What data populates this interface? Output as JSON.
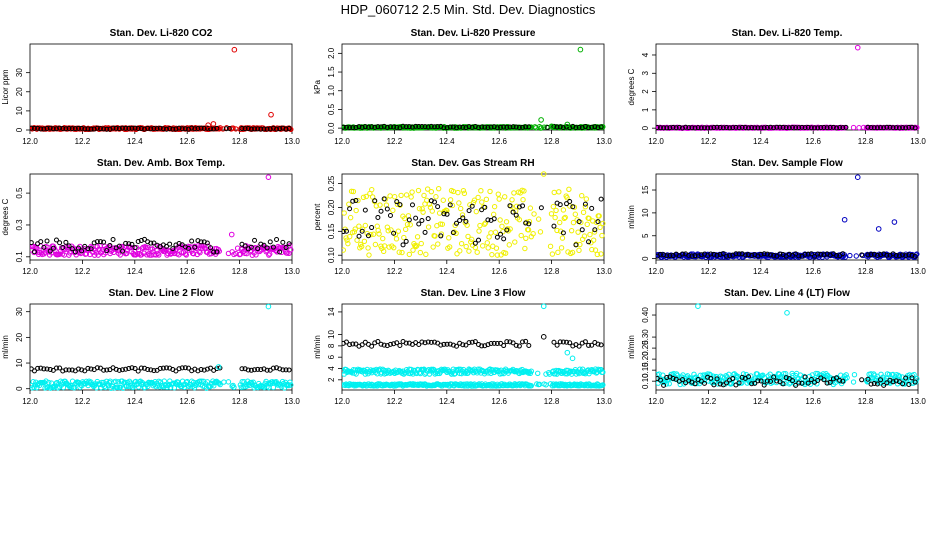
{
  "figure": {
    "title": "HDP_060712  2.5 Min. Std. Dev. Diagnostics"
  },
  "chart_data": [
    {
      "type": "scatter",
      "title": "Stan. Dev. Li-820 CO2",
      "ylabel": "Licor ppm",
      "xlim": [
        12.0,
        13.0
      ],
      "ylim": [
        0,
        45
      ],
      "xticks": [
        "12.0",
        "12.2",
        "12.4",
        "12.6",
        "12.8",
        "13.0"
      ],
      "yticks": [
        "0",
        "10",
        "20",
        "30"
      ],
      "color": "#e00000",
      "series": [
        {
          "name": "main",
          "color": "#e00000",
          "x": [
            12.0,
            12.72,
            12.76,
            12.8,
            13.0
          ],
          "y": [
            0.5,
            0.5,
            null,
            0.5,
            0.5
          ],
          "band": [
            0.3,
            1.2
          ]
        },
        {
          "name": "black",
          "color": "#000000",
          "x": [
            12.0,
            12.72,
            12.76,
            12.8,
            13.0
          ],
          "y": [
            0.6,
            0.6,
            null,
            0.6,
            0.6
          ],
          "band": [
            0.4,
            1.0
          ]
        }
      ],
      "outliers": [
        {
          "x": 12.68,
          "y": 2.5,
          "color": "#e00000"
        },
        {
          "x": 12.7,
          "y": 3.2,
          "color": "#e00000"
        },
        {
          "x": 12.78,
          "y": 42,
          "color": "#e00000"
        },
        {
          "x": 12.92,
          "y": 8,
          "color": "#e00000"
        }
      ]
    },
    {
      "type": "scatter",
      "title": "Stan. Dev. Li-820 Pressure",
      "ylabel": "kPa",
      "xlim": [
        12.0,
        13.0
      ],
      "ylim": [
        -0.05,
        2.25
      ],
      "xticks": [
        "12.0",
        "12.2",
        "12.4",
        "12.6",
        "12.8",
        "13.0"
      ],
      "yticks": [
        "0.0",
        "0.5",
        "1.0",
        "1.5",
        "2.0"
      ],
      "color": "#00b000",
      "series": [
        {
          "name": "main",
          "color": "#00b000",
          "x": [
            12.0,
            13.0
          ],
          "y": [
            0.02,
            0.02
          ],
          "band": [
            0.0,
            0.04
          ]
        },
        {
          "name": "black",
          "color": "#000000",
          "x": [
            12.0,
            13.0
          ],
          "y": [
            0.03,
            0.03
          ],
          "band": [
            0.01,
            0.05
          ]
        }
      ],
      "outliers": [
        {
          "x": 12.76,
          "y": 0.22,
          "color": "#00b000"
        },
        {
          "x": 12.8,
          "y": 0.05,
          "color": "#00b000"
        },
        {
          "x": 12.86,
          "y": 0.1,
          "color": "#00b000"
        },
        {
          "x": 12.91,
          "y": 2.1,
          "color": "#00b000"
        }
      ]
    },
    {
      "type": "scatter",
      "title": "Stan. Dev. Li-820 Temp.",
      "ylabel": "degrees C",
      "xlim": [
        12.0,
        13.0
      ],
      "ylim": [
        -0.1,
        4.6
      ],
      "xticks": [
        "12.0",
        "12.2",
        "12.4",
        "12.6",
        "12.8",
        "13.0"
      ],
      "yticks": [
        "0",
        "1",
        "2",
        "3",
        "4"
      ],
      "color": "#e000e0",
      "series": [
        {
          "name": "main",
          "color": "#e000e0",
          "x": [
            12.0,
            13.0
          ],
          "y": [
            0.02,
            0.02
          ],
          "band": [
            0.0,
            0.05
          ]
        },
        {
          "name": "black",
          "color": "#000000",
          "x": [
            12.0,
            13.0
          ],
          "y": [
            0.03,
            0.03
          ],
          "band": [
            0.01,
            0.05
          ]
        }
      ],
      "outliers": [
        {
          "x": 12.77,
          "y": 4.4,
          "color": "#e000e0"
        }
      ]
    },
    {
      "type": "scatter",
      "title": "Stan. Dev. Amb. Box Temp.",
      "ylabel": "degrees C",
      "xlim": [
        12.0,
        13.0
      ],
      "ylim": [
        0.08,
        0.62
      ],
      "xticks": [
        "12.0",
        "12.2",
        "12.4",
        "12.6",
        "12.8",
        "13.0"
      ],
      "yticks": [
        "0.1",
        "0.3",
        "0.5"
      ],
      "color": "#e000e0",
      "series": [
        {
          "name": "main",
          "color": "#e000e0",
          "x": [
            12.0,
            13.0
          ],
          "y": [
            0.14,
            0.14
          ],
          "band": [
            0.11,
            0.17
          ]
        },
        {
          "name": "black",
          "color": "#000000",
          "x": [
            12.0,
            13.0
          ],
          "y": [
            0.17,
            0.17
          ],
          "band": [
            0.13,
            0.21
          ]
        }
      ],
      "outliers": [
        {
          "x": 12.77,
          "y": 0.24,
          "color": "#e000e0"
        },
        {
          "x": 12.91,
          "y": 0.6,
          "color": "#e000e0"
        }
      ]
    },
    {
      "type": "scatter",
      "title": "Stan. Dev. Gas Stream RH",
      "ylabel": "percent",
      "xlim": [
        12.0,
        13.0
      ],
      "ylim": [
        0.09,
        0.27
      ],
      "xticks": [
        "12.0",
        "12.2",
        "12.4",
        "12.6",
        "12.8",
        "13.0"
      ],
      "yticks": [
        "0.10",
        "0.15",
        "0.20",
        "0.25"
      ],
      "color": "#f0f000",
      "series": [
        {
          "name": "main",
          "color": "#f0f000",
          "x": [
            12.0,
            13.0
          ],
          "y": [
            0.16,
            0.16
          ],
          "band": [
            0.1,
            0.24
          ]
        },
        {
          "name": "black",
          "color": "#000000",
          "x": [
            12.0,
            13.0
          ],
          "y": [
            0.17,
            0.17
          ],
          "band": [
            0.12,
            0.22
          ]
        }
      ],
      "outliers": [
        {
          "x": 12.77,
          "y": 0.27,
          "color": "#f0f000"
        }
      ]
    },
    {
      "type": "scatter",
      "title": "Stan. Dev. Sample Flow",
      "ylabel": "ml/min",
      "xlim": [
        12.0,
        13.0
      ],
      "ylim": [
        -0.3,
        18.5
      ],
      "xticks": [
        "12.0",
        "12.2",
        "12.4",
        "12.6",
        "12.8",
        "13.0"
      ],
      "yticks": [
        "0",
        "5",
        "10",
        "15"
      ],
      "color": "#0000c0",
      "series": [
        {
          "name": "main",
          "color": "#0000c0",
          "x": [
            12.0,
            13.0
          ],
          "y": [
            0.6,
            0.6
          ],
          "band": [
            0.3,
            1.0
          ]
        },
        {
          "name": "black",
          "color": "#000000",
          "x": [
            12.0,
            13.0
          ],
          "y": [
            0.8,
            0.8
          ],
          "band": [
            0.5,
            1.1
          ]
        }
      ],
      "outliers": [
        {
          "x": 12.72,
          "y": 8.5,
          "color": "#0000c0"
        },
        {
          "x": 12.77,
          "y": 17.8,
          "color": "#0000c0"
        },
        {
          "x": 12.85,
          "y": 6.5,
          "color": "#0000c0"
        },
        {
          "x": 12.91,
          "y": 8.0,
          "color": "#0000c0"
        }
      ]
    },
    {
      "type": "scatter",
      "title": "Stan. Dev. Line 2 Flow",
      "ylabel": "ml/min",
      "xlim": [
        12.0,
        13.0
      ],
      "ylim": [
        -0.5,
        33
      ],
      "xticks": [
        "12.0",
        "12.2",
        "12.4",
        "12.6",
        "12.8",
        "13.0"
      ],
      "yticks": [
        "0",
        "10",
        "20",
        "30"
      ],
      "color": "#00f0f0",
      "series": [
        {
          "name": "main",
          "color": "#00f0f0",
          "x": [
            12.0,
            13.0
          ],
          "y": [
            1.5,
            1.5
          ],
          "band": [
            0.2,
            3.0
          ]
        },
        {
          "name": "black",
          "color": "#000000",
          "x": [
            12.0,
            13.0
          ],
          "y": [
            7.5,
            7.5
          ],
          "band": [
            6.8,
            8.2
          ]
        }
      ],
      "outliers": [
        {
          "x": 12.72,
          "y": 8.5,
          "color": "#00f0f0"
        },
        {
          "x": 12.91,
          "y": 32,
          "color": "#00f0f0"
        }
      ]
    },
    {
      "type": "scatter",
      "title": "Stan. Dev. Line 3 Flow",
      "ylabel": "ml/min",
      "xlim": [
        12.0,
        13.0
      ],
      "ylim": [
        0.2,
        15.4
      ],
      "xticks": [
        "12.0",
        "12.2",
        "12.4",
        "12.6",
        "12.8",
        "13.0"
      ],
      "yticks": [
        "2",
        "4",
        "6",
        "8",
        "10",
        "14"
      ],
      "color": "#00f0f0",
      "series": [
        {
          "name": "main",
          "color": "#00f0f0",
          "x": [
            12.0,
            13.0
          ],
          "y": [
            3.4,
            3.4
          ],
          "band": [
            3.0,
            3.9
          ]
        },
        {
          "name": "low",
          "color": "#00f0f0",
          "x": [
            12.0,
            13.0
          ],
          "y": [
            1.1,
            1.1
          ],
          "band": [
            0.9,
            1.3
          ]
        },
        {
          "name": "black",
          "color": "#000000",
          "x": [
            12.0,
            13.0
          ],
          "y": [
            8.3,
            8.3
          ],
          "band": [
            7.9,
            8.8
          ]
        }
      ],
      "outliers": [
        {
          "x": 12.77,
          "y": 15.0,
          "color": "#00f0f0"
        },
        {
          "x": 12.77,
          "y": 9.6,
          "color": "#000000"
        },
        {
          "x": 12.86,
          "y": 6.8,
          "color": "#00f0f0"
        },
        {
          "x": 12.88,
          "y": 5.8,
          "color": "#00f0f0"
        }
      ]
    },
    {
      "type": "scatter",
      "title": "Stan. Dev. Line 4 (LT) Flow",
      "ylabel": "ml/min",
      "xlim": [
        12.0,
        13.0
      ],
      "ylim": [
        0.06,
        0.45
      ],
      "xticks": [
        "12.0",
        "12.2",
        "12.4",
        "12.6",
        "12.8",
        "13.0"
      ],
      "yticks": [
        "0.10",
        "0.15",
        "0.20",
        "0.25",
        "0.30",
        "0.40"
      ],
      "color": "#00f0f0",
      "series": [
        {
          "name": "main",
          "color": "#00f0f0",
          "x": [
            12.0,
            13.0
          ],
          "y": [
            0.11,
            0.11
          ],
          "band": [
            0.085,
            0.135
          ]
        },
        {
          "name": "black",
          "color": "#000000",
          "x": [
            12.0,
            13.0
          ],
          "y": [
            0.1,
            0.1
          ],
          "band": [
            0.08,
            0.12
          ]
        }
      ],
      "outliers": [
        {
          "x": 12.16,
          "y": 0.44,
          "color": "#00f0f0"
        },
        {
          "x": 12.5,
          "y": 0.41,
          "color": "#00f0f0"
        }
      ]
    }
  ]
}
